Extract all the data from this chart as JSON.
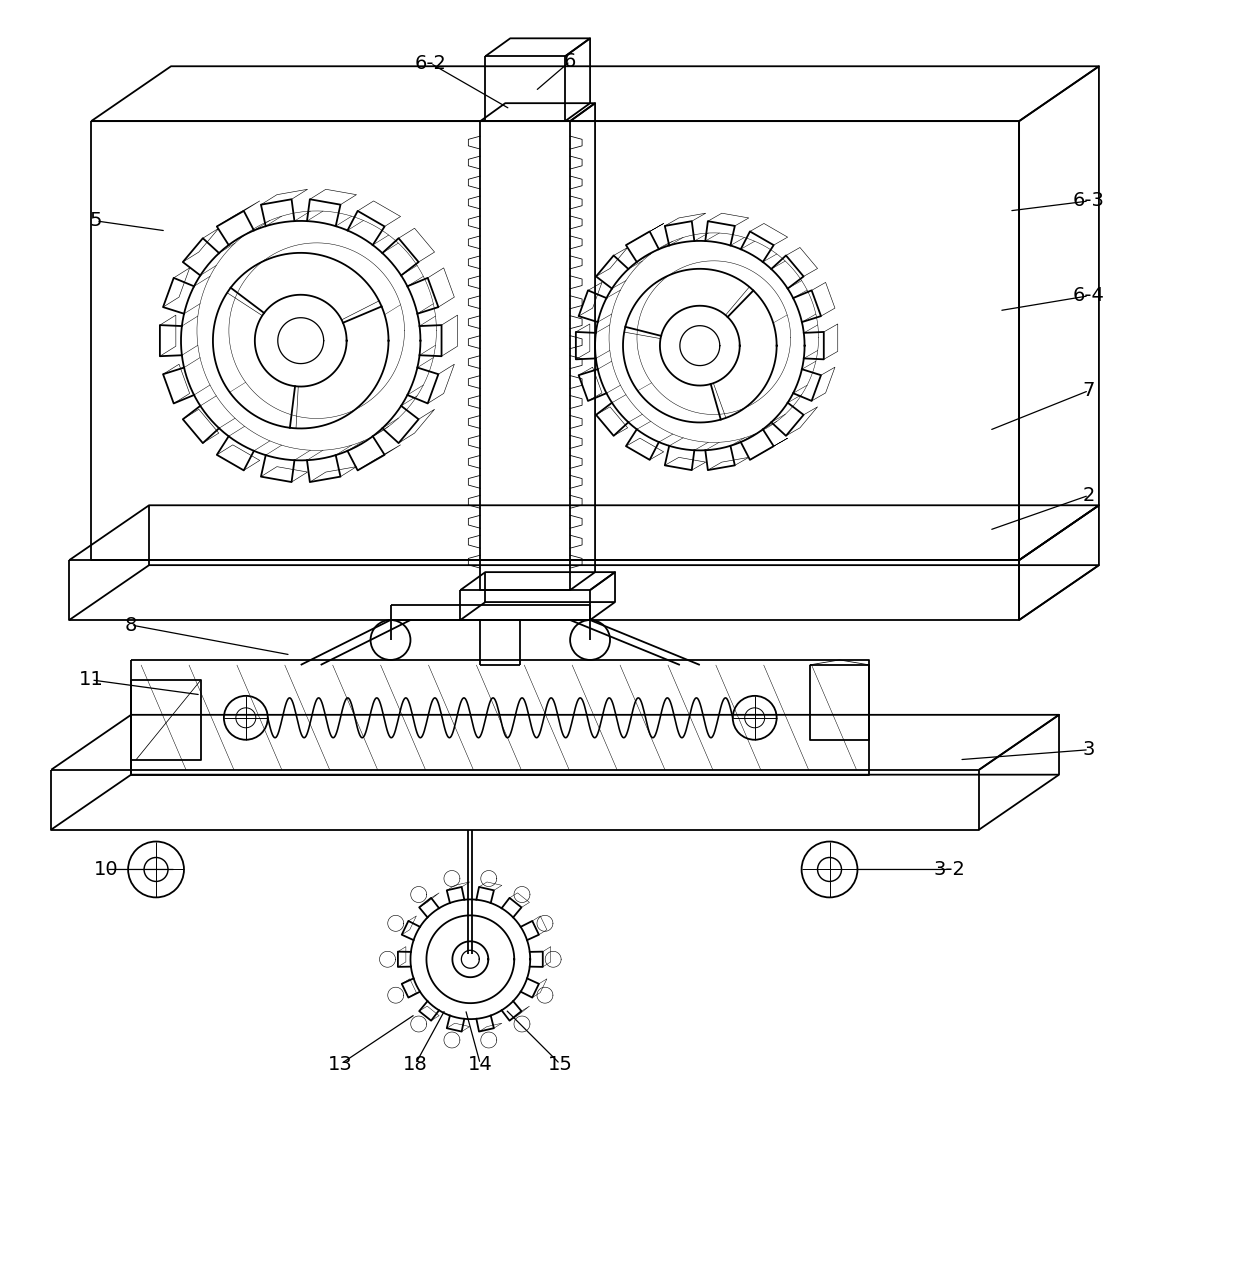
{
  "bg_color": "#ffffff",
  "line_color": "#000000",
  "lw": 1.3,
  "tlw": 0.7
}
